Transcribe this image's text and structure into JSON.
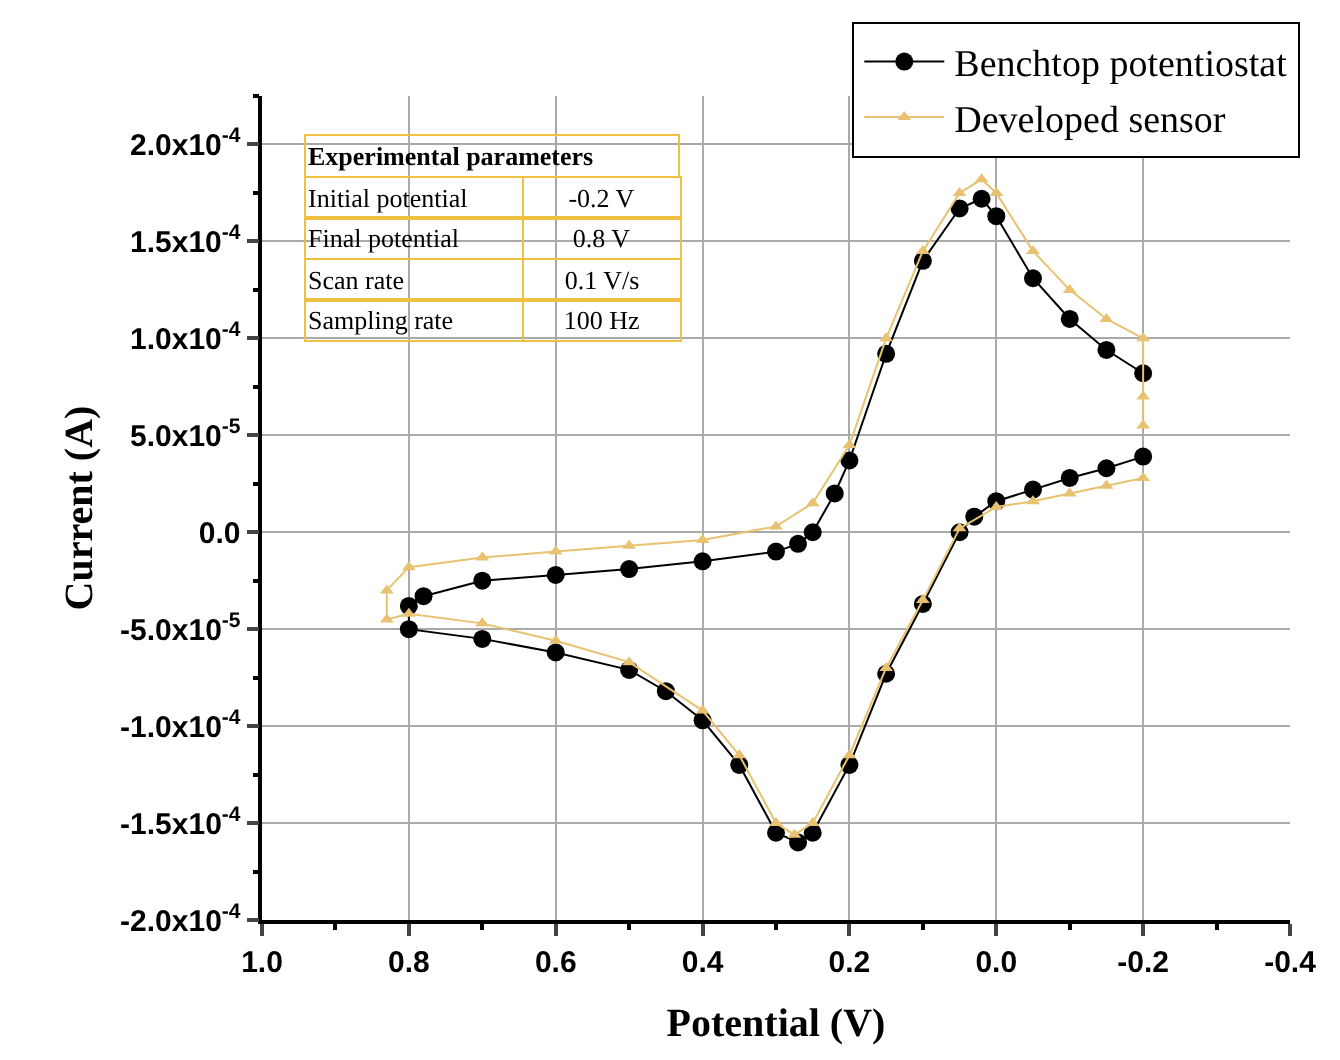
{
  "chart_data": {
    "type": "line",
    "xlabel": "Potential (V)",
    "ylabel": "Current (A)",
    "xlim": [
      1.0,
      -0.4
    ],
    "xticks": [
      {
        "value": 1.0,
        "label": "1.0"
      },
      0.8,
      0.6,
      0.4,
      0.2,
      {
        "value": 0.0,
        "label": "0.0"
      },
      -0.2,
      -0.4
    ],
    "ylim": [
      -0.0002,
      0.000225
    ],
    "yticks": [
      {
        "value": -0.0002,
        "label": "-2.0x10$^{-4}$"
      },
      {
        "value": -0.00015,
        "label": "-1.5x10$^{-4}$"
      },
      {
        "value": -0.0001,
        "label": "-1.0x10$^{-4}$"
      },
      {
        "value": -5e-05,
        "label": "-5.0x10$^{-5}$"
      },
      {
        "value": 0,
        "label": "0.0"
      },
      {
        "value": 5e-05,
        "label": "5.0x10$^{-5}$"
      },
      {
        "value": 0.0001,
        "label": "1.0x10$^{-4}$"
      },
      {
        "value": 0.00015,
        "label": "1.5x10$^{-4}$"
      },
      {
        "value": 0.0002,
        "label": "2.0x10$^{-4}$"
      }
    ],
    "grid": true,
    "legend": "top right",
    "series": [
      {
        "name": "Benchtop potentiostat",
        "color": "#000000",
        "marker": "circle",
        "x": [
          -0.2,
          -0.15,
          -0.1,
          -0.05,
          0.0,
          0.03,
          0.05,
          0.1,
          0.15,
          0.2,
          0.25,
          0.27,
          0.3,
          0.35,
          0.4,
          0.45,
          0.5,
          0.6,
          0.7,
          0.8,
          0.8,
          0.78,
          0.7,
          0.6,
          0.5,
          0.4,
          0.3,
          0.27,
          0.25,
          0.22,
          0.2,
          0.15,
          0.1,
          0.05,
          0.02,
          0.0,
          -0.05,
          -0.1,
          -0.15,
          -0.2
        ],
        "values": [
          3.9e-05,
          3.3e-05,
          2.8e-05,
          2.2e-05,
          1.6e-05,
          8e-06,
          0,
          -3.7e-05,
          -7.3e-05,
          -0.00012,
          -0.000155,
          -0.00016,
          -0.000155,
          -0.00012,
          -9.7e-05,
          -8.2e-05,
          -7.1e-05,
          -6.2e-05,
          -5.5e-05,
          -5e-05,
          -3.8e-05,
          -3.3e-05,
          -2.5e-05,
          -2.2e-05,
          -1.9e-05,
          -1.5e-05,
          -1e-05,
          -6e-06,
          0,
          2e-05,
          3.7e-05,
          9.2e-05,
          0.00014,
          0.000167,
          0.000172,
          0.000163,
          0.000131,
          0.00011,
          9.4e-05,
          8.2e-05
        ]
      },
      {
        "name": "Developed sensor",
        "color": "#e8c270",
        "marker": "triangle",
        "x": [
          -0.2,
          -0.15,
          -0.1,
          -0.05,
          0.0,
          0.05,
          0.1,
          0.15,
          0.2,
          0.25,
          0.275,
          0.3,
          0.35,
          0.4,
          0.5,
          0.6,
          0.7,
          0.8,
          0.83,
          0.83,
          0.8,
          0.7,
          0.6,
          0.5,
          0.4,
          0.3,
          0.25,
          0.2,
          0.15,
          0.1,
          0.05,
          0.02,
          0.0,
          -0.05,
          -0.1,
          -0.15,
          -0.2,
          -0.2,
          -0.2
        ],
        "values": [
          2.8e-05,
          2.4e-05,
          2e-05,
          1.6e-05,
          1.3e-05,
          2e-06,
          -3.5e-05,
          -7e-05,
          -0.000115,
          -0.00015,
          -0.000156,
          -0.00015,
          -0.000115,
          -9.2e-05,
          -6.7e-05,
          -5.6e-05,
          -4.7e-05,
          -4.2e-05,
          -4.5e-05,
          -3e-05,
          -1.8e-05,
          -1.3e-05,
          -1e-05,
          -7e-06,
          -4e-06,
          3e-06,
          1.5e-05,
          4.5e-05,
          0.0001,
          0.000145,
          0.000175,
          0.000182,
          0.000175,
          0.000145,
          0.000125,
          0.00011,
          0.0001,
          7e-05,
          5.5e-05
        ]
      }
    ],
    "annotations": [
      "Experimental parameters",
      "Initial potential",
      "-0.2 V",
      "Final potential",
      "0.8 V",
      "Scan rate",
      "0.1 V/s",
      "Sampling rate",
      "100 Hz"
    ]
  }
}
